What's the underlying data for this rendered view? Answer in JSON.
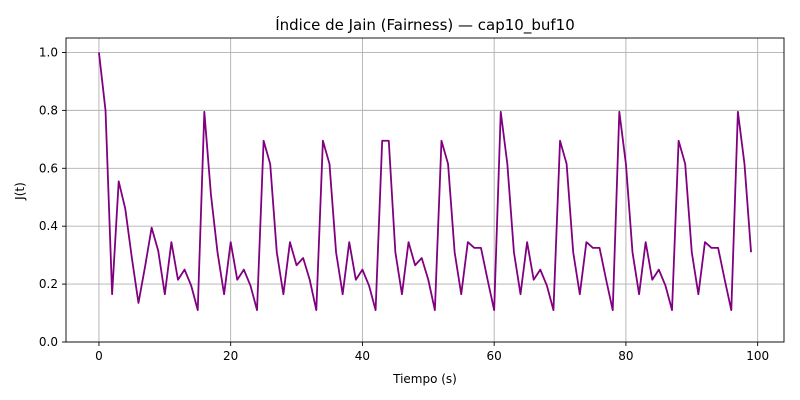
{
  "chart_data": {
    "type": "line",
    "title": "Índice de Jain (Fairness) — cap10_buf10",
    "xlabel": "Tiempo (s)",
    "ylabel": "J(t)",
    "xlim": [
      -5,
      104
    ],
    "ylim": [
      0.0,
      1.05
    ],
    "xticks": [
      0,
      20,
      40,
      60,
      80,
      100
    ],
    "yticks": [
      0.0,
      0.2,
      0.4,
      0.6,
      0.8,
      1.0
    ],
    "xtick_labels": [
      "0",
      "20",
      "40",
      "60",
      "80",
      "100"
    ],
    "ytick_labels": [
      "0.0",
      "0.2",
      "0.4",
      "0.6",
      "0.8",
      "1.0"
    ],
    "grid": true,
    "line_color": "#800080",
    "series": [
      {
        "x": [
          0,
          1,
          2,
          3,
          4,
          5,
          6,
          7,
          8,
          9,
          10,
          11,
          12,
          13,
          14,
          15,
          16,
          17,
          18,
          19,
          20,
          21,
          22,
          23,
          24,
          25,
          26,
          27,
          28,
          29,
          30,
          31,
          32,
          33,
          34,
          35,
          36,
          37,
          38,
          39,
          40,
          41,
          42,
          43,
          44,
          45,
          46,
          47,
          48,
          49,
          50,
          51,
          52,
          53,
          54,
          55,
          56,
          57,
          58,
          59,
          60,
          61,
          62,
          63,
          64,
          65,
          66,
          67,
          68,
          69,
          70,
          71,
          72,
          73,
          74,
          75,
          76,
          77,
          78,
          79,
          80,
          81,
          82,
          83,
          84,
          85,
          86,
          87,
          88,
          89,
          90,
          91,
          92,
          93,
          94,
          95,
          96,
          97,
          98,
          99
        ],
        "values": [
          1.0,
          0.8,
          0.165,
          0.555,
          0.46,
          0.29,
          0.135,
          0.26,
          0.395,
          0.315,
          0.165,
          0.345,
          0.215,
          0.25,
          0.195,
          0.11,
          0.795,
          0.51,
          0.31,
          0.165,
          0.345,
          0.215,
          0.25,
          0.195,
          0.11,
          0.695,
          0.615,
          0.31,
          0.165,
          0.345,
          0.265,
          0.29,
          0.215,
          0.11,
          0.695,
          0.615,
          0.31,
          0.165,
          0.345,
          0.215,
          0.25,
          0.195,
          0.11,
          0.695,
          0.695,
          0.31,
          0.165,
          0.345,
          0.265,
          0.29,
          0.215,
          0.11,
          0.695,
          0.615,
          0.31,
          0.165,
          0.345,
          0.325,
          0.325,
          0.215,
          0.11,
          0.795,
          0.615,
          0.31,
          0.165,
          0.345,
          0.215,
          0.25,
          0.195,
          0.11,
          0.695,
          0.615,
          0.31,
          0.165,
          0.345,
          0.325,
          0.325,
          0.215,
          0.11,
          0.795,
          0.615,
          0.31,
          0.165,
          0.345,
          0.215,
          0.25,
          0.195,
          0.11,
          0.695,
          0.615,
          0.31,
          0.165,
          0.345,
          0.325,
          0.325,
          0.215,
          0.11,
          0.795,
          0.615,
          0.31
        ]
      }
    ]
  }
}
